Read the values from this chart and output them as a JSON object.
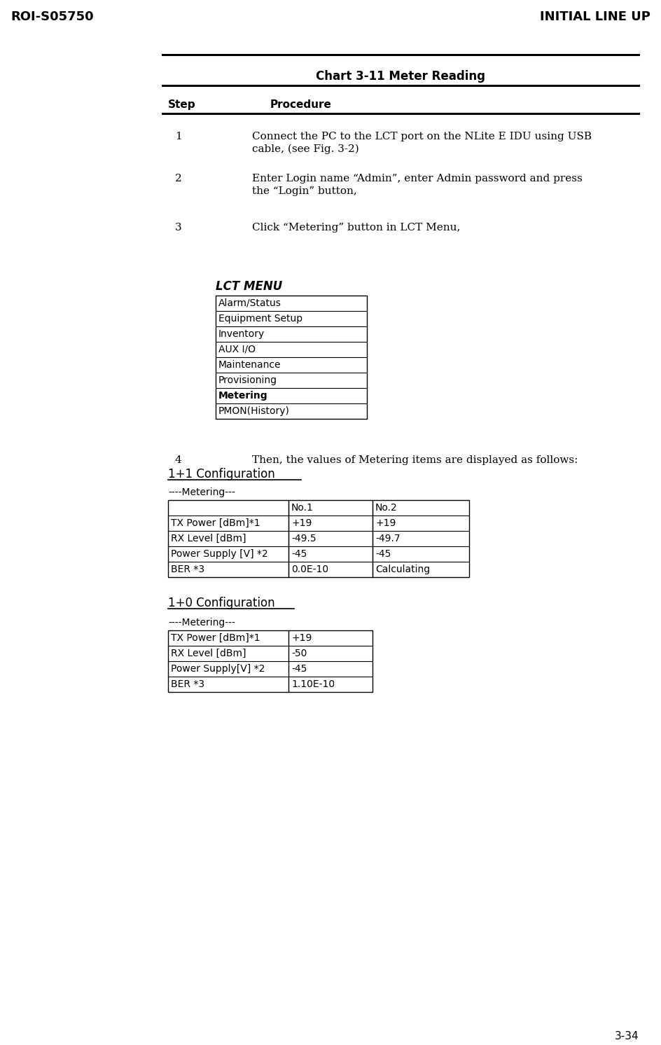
{
  "page_title_left": "ROI-S05750",
  "page_title_right": "INITIAL LINE UP",
  "page_number": "3-34",
  "chart_title": "Chart 3-11 Meter Reading",
  "step_header": "Step",
  "procedure_header": "Procedure",
  "steps": [
    {
      "num": "1",
      "text_lines": [
        "Connect the PC to the LCT port on the NLite E IDU using USB",
        "cable, (see Fig. 3-2)"
      ]
    },
    {
      "num": "2",
      "text_lines": [
        "Enter Login name “Admin”, enter Admin password and press",
        "the “Login” button,"
      ]
    },
    {
      "num": "3",
      "text_lines": [
        "Click “Metering” button in LCT Menu,"
      ]
    }
  ],
  "lct_menu_label": "LCT MENU",
  "lct_menu_items": [
    {
      "text": "Alarm/Status",
      "bold": false
    },
    {
      "text": "Equipment Setup",
      "bold": false
    },
    {
      "text": "Inventory",
      "bold": false
    },
    {
      "text": "AUX I/O",
      "bold": false
    },
    {
      "text": "Maintenance",
      "bold": false
    },
    {
      "text": "Provisioning",
      "bold": false
    },
    {
      "text": "Metering",
      "bold": true
    },
    {
      "text": "PMON(History)",
      "bold": false
    }
  ],
  "step4_text": "Then, the values of Metering items are displayed as follows:",
  "config1_title": "1+1 Configuration",
  "metering_label": "----Metering---",
  "table1_headers": [
    "",
    "No.1",
    "No.2"
  ],
  "table1_rows": [
    [
      "TX Power [dBm]*1",
      "+19",
      "+19"
    ],
    [
      "RX Level [dBm]",
      "-49.5",
      "-49.7"
    ],
    [
      "Power Supply [V] *2",
      "-45",
      "-45"
    ],
    [
      "BER *3",
      "0.0E-10",
      "Calculating"
    ]
  ],
  "config2_title": "1+0 Configuration",
  "metering_label2": "----Metering---",
  "table2_rows": [
    [
      "TX Power [dBm]*1",
      "+19"
    ],
    [
      "RX Level [dBm]",
      "-50"
    ],
    [
      "Power Supply[V] *2",
      "-45"
    ],
    [
      "BER *3",
      "1.10E-10"
    ]
  ],
  "bg_color": "#ffffff",
  "text_color": "#000000"
}
